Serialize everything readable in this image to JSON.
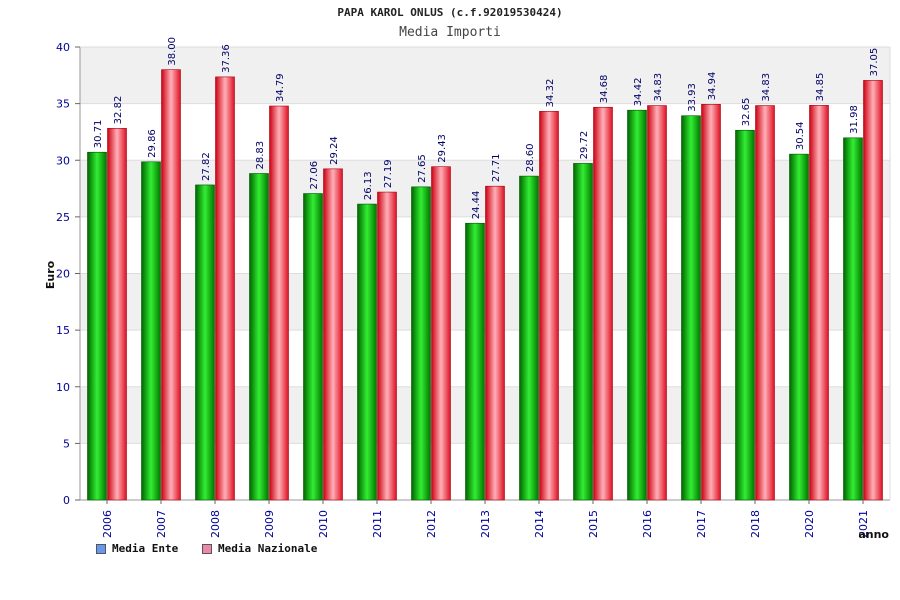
{
  "chart_data": {
    "type": "bar",
    "title": "PAPA KAROL ONLUS (c.f.92019530424)",
    "subtitle": "Media Importi",
    "xlabel": "anno",
    "ylabel": "Euro",
    "categories": [
      "2006",
      "2007",
      "2008",
      "2009",
      "2010",
      "2011",
      "2012",
      "2013",
      "2014",
      "2015",
      "2016",
      "2017",
      "2018",
      "2020",
      "2021"
    ],
    "series": [
      {
        "name": "Media Ente",
        "values": [
          30.71,
          29.86,
          27.82,
          28.83,
          27.06,
          26.13,
          27.65,
          24.44,
          28.6,
          29.72,
          34.42,
          33.93,
          32.65,
          30.54,
          31.98
        ],
        "labels": [
          "30.71",
          "29.86",
          "27.82",
          "28.83",
          "27.06",
          "26.13",
          "27.65",
          "24.44",
          "28.60",
          "29.72",
          "34.42",
          "33.93",
          "32.65",
          "30.54",
          "31.98"
        ]
      },
      {
        "name": "Media Nazionale",
        "values": [
          32.82,
          38.0,
          37.36,
          34.79,
          29.24,
          27.19,
          29.43,
          27.71,
          34.32,
          34.68,
          34.83,
          34.94,
          34.83,
          34.85,
          37.05
        ],
        "labels": [
          "32.82",
          "38.00",
          "37.36",
          "34.79",
          "29.24",
          "27.19",
          "29.43",
          "27.71",
          "34.32",
          "34.68",
          "34.83",
          "34.94",
          "34.83",
          "34.85",
          "37.05"
        ]
      }
    ],
    "ylim": [
      0,
      40
    ],
    "yticks": [
      0,
      5,
      10,
      15,
      20,
      25,
      30,
      35,
      40
    ],
    "grid": true,
    "legend_position": "bottom-left",
    "colors": {
      "series1": "#00cc00",
      "series2": "#ee2233",
      "legend1": "#6699ee",
      "legend2": "#ee88aa",
      "axis_text": "#000099",
      "label_text": "#000066",
      "band": "#f0f0f0"
    }
  }
}
